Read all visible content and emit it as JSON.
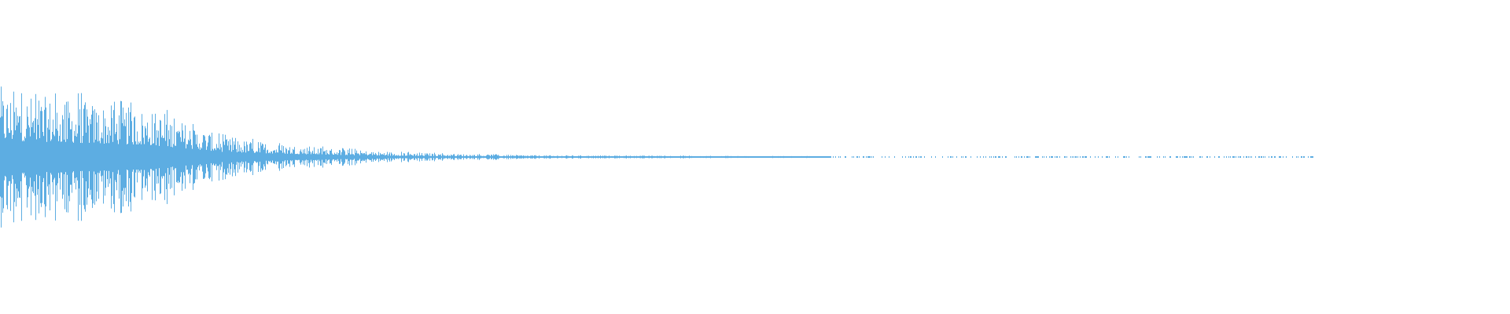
{
  "chart_data": {
    "type": "area",
    "title": "",
    "xlabel": "",
    "ylabel": "",
    "grid": false,
    "legend": "none",
    "color": "#5dade2",
    "ylim": [
      -1,
      1
    ],
    "xlim": [
      0,
      1
    ],
    "envelope": {
      "t": [
        0,
        0.05,
        0.1,
        0.15,
        0.2,
        0.25,
        0.3,
        0.35,
        0.4,
        0.5,
        0.6,
        0.7,
        0.8,
        0.87,
        1.0
      ],
      "peak": [
        0.42,
        0.36,
        0.3,
        0.12,
        0.07,
        0.035,
        0.02,
        0.012,
        0.009,
        0.006,
        0.004,
        0.003,
        0.002,
        0.0,
        0.0
      ]
    }
  }
}
